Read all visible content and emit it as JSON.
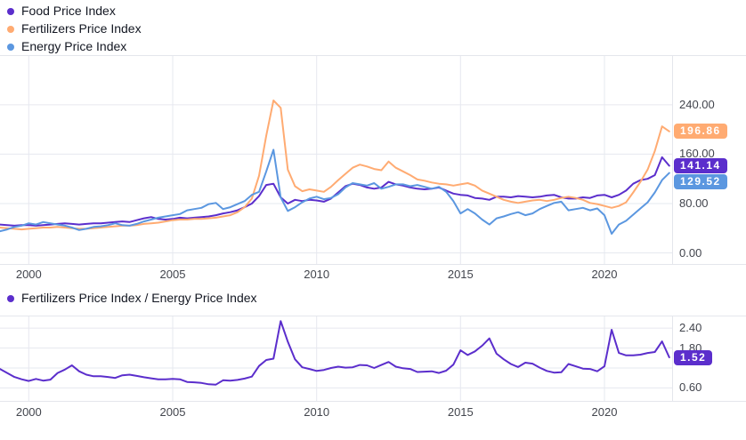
{
  "chart_data": [
    {
      "type": "line",
      "title": "",
      "xlabel": "",
      "ylabel": "",
      "grid": "on",
      "legend_position": "top-left",
      "svg": "main-chart-svg",
      "y_axis": "main-y-axis",
      "x_axis": "main-x-axis",
      "x_start": 1999.0,
      "x_step": 0.25,
      "xlim": [
        1999.0,
        2022.35
      ],
      "ylim": [
        -18,
        319
      ],
      "x_ticks": [
        {
          "label": "2000",
          "value": 2000
        },
        {
          "label": "2005",
          "value": 2005
        },
        {
          "label": "2010",
          "value": 2010
        },
        {
          "label": "2015",
          "value": 2015
        },
        {
          "label": "2020",
          "value": 2020
        }
      ],
      "y_ticks": [
        {
          "label": "240.00",
          "value": 240
        },
        {
          "label": "160.00",
          "value": 160
        },
        {
          "label": "80.00",
          "value": 80
        },
        {
          "label": "0.00",
          "value": 0
        }
      ],
      "series": [
        {
          "name": "Food Price Index",
          "color": "#5b2ecc",
          "last_label": "141.14",
          "values": [
            46,
            45,
            44,
            45,
            45,
            44,
            45,
            46,
            47,
            48,
            47,
            46,
            47,
            48,
            48,
            49,
            50,
            51,
            50,
            53,
            56,
            58,
            55,
            54,
            55,
            57,
            56,
            57,
            58,
            59,
            61,
            64,
            66,
            69,
            74,
            80,
            92,
            110,
            112,
            90,
            80,
            86,
            84,
            86,
            85,
            83,
            88,
            98,
            108,
            112,
            110,
            106,
            104,
            106,
            115,
            111,
            109,
            106,
            104,
            103,
            104,
            106,
            101,
            96,
            94,
            93,
            89,
            88,
            86,
            91,
            91,
            90,
            92,
            91,
            90,
            91,
            93,
            94,
            90,
            88,
            88,
            90,
            89,
            93,
            94,
            90,
            94,
            101,
            112,
            118,
            120,
            126,
            155,
            141.14
          ]
        },
        {
          "name": "Fertilizers Price Index",
          "color": "#ffab72",
          "last_label": "196.86",
          "values": [
            41,
            40,
            39,
            38,
            39,
            40,
            41,
            41,
            42,
            41,
            40,
            39,
            39,
            40,
            41,
            42,
            43,
            44,
            44,
            45,
            47,
            48,
            49,
            51,
            53,
            54,
            54,
            55,
            55,
            56,
            57,
            59,
            61,
            66,
            74,
            88,
            125,
            190,
            247,
            235,
            135,
            108,
            100,
            103,
            101,
            99,
            107,
            118,
            128,
            138,
            143,
            140,
            136,
            134,
            148,
            138,
            132,
            126,
            119,
            117,
            114,
            112,
            111,
            109,
            111,
            113,
            109,
            101,
            96,
            91,
            86,
            83,
            81,
            83,
            85,
            86,
            84,
            86,
            89,
            91,
            89,
            86,
            81,
            79,
            76,
            73,
            76,
            82,
            98,
            115,
            135,
            165,
            205,
            196.86
          ]
        },
        {
          "name": "Energy Price Index",
          "color": "#5b97e0",
          "last_label": "129.52",
          "values": [
            35,
            38,
            42,
            44,
            48,
            46,
            50,
            48,
            46,
            44,
            41,
            37,
            39,
            42,
            43,
            45,
            48,
            45,
            44,
            47,
            51,
            54,
            57,
            59,
            61,
            63,
            69,
            71,
            73,
            79,
            81,
            71,
            74,
            79,
            84,
            94,
            99,
            132,
            167,
            90,
            68,
            74,
            82,
            88,
            91,
            87,
            89,
            95,
            106,
            113,
            111,
            109,
            113,
            104,
            107,
            111,
            111,
            108,
            110,
            107,
            104,
            107,
            99,
            84,
            64,
            71,
            64,
            54,
            46,
            56,
            59,
            63,
            66,
            61,
            64,
            71,
            76,
            81,
            83,
            69,
            71,
            73,
            69,
            72,
            61,
            31,
            46,
            52,
            62,
            72,
            82,
            98,
            118,
            129.52
          ]
        }
      ],
      "grid_color": "#e6e8ef"
    },
    {
      "type": "line",
      "title": "",
      "xlabel": "",
      "ylabel": "",
      "grid": "on",
      "legend_position": "top-left",
      "svg": "ratio-chart-svg",
      "y_axis": "ratio-y-axis",
      "x_axis": "ratio-x-axis",
      "x_start": 1999.0,
      "x_step": 0.25,
      "xlim": [
        1999.0,
        2022.35
      ],
      "ylim": [
        0.21,
        2.75
      ],
      "x_ticks": [
        {
          "label": "2000",
          "value": 2000
        },
        {
          "label": "2005",
          "value": 2005
        },
        {
          "label": "2010",
          "value": 2010
        },
        {
          "label": "2015",
          "value": 2015
        },
        {
          "label": "2020",
          "value": 2020
        }
      ],
      "y_ticks": [
        {
          "label": "2.40",
          "value": 2.4
        },
        {
          "label": "1.80",
          "value": 1.8
        },
        {
          "label": "",
          "value": 1.2
        },
        {
          "label": "0.60",
          "value": 0.6
        }
      ],
      "series": [
        {
          "name": "Fertilizers Price Index / Energy Price Index",
          "color": "#5b2ecc",
          "last_label": "1.52",
          "values": [
            1.17,
            1.05,
            0.93,
            0.86,
            0.81,
            0.87,
            0.82,
            0.85,
            1.05,
            1.15,
            1.28,
            1.1,
            1.0,
            0.95,
            0.95,
            0.93,
            0.9,
            0.98,
            1.0,
            0.96,
            0.92,
            0.89,
            0.86,
            0.86,
            0.87,
            0.86,
            0.78,
            0.77,
            0.75,
            0.71,
            0.7,
            0.83,
            0.82,
            0.84,
            0.88,
            0.94,
            1.26,
            1.44,
            1.48,
            2.61,
            1.99,
            1.46,
            1.22,
            1.17,
            1.11,
            1.14,
            1.2,
            1.24,
            1.21,
            1.22,
            1.29,
            1.28,
            1.2,
            1.29,
            1.38,
            1.24,
            1.19,
            1.17,
            1.08,
            1.09,
            1.1,
            1.05,
            1.12,
            1.3,
            1.73,
            1.59,
            1.7,
            1.87,
            2.09,
            1.63,
            1.46,
            1.32,
            1.23,
            1.36,
            1.33,
            1.21,
            1.11,
            1.06,
            1.07,
            1.32,
            1.25,
            1.18,
            1.17,
            1.1,
            1.25,
            2.35,
            1.65,
            1.58,
            1.58,
            1.6,
            1.65,
            1.68,
            2.0,
            1.52
          ]
        }
      ],
      "grid_color": "#e6e8ef"
    }
  ]
}
